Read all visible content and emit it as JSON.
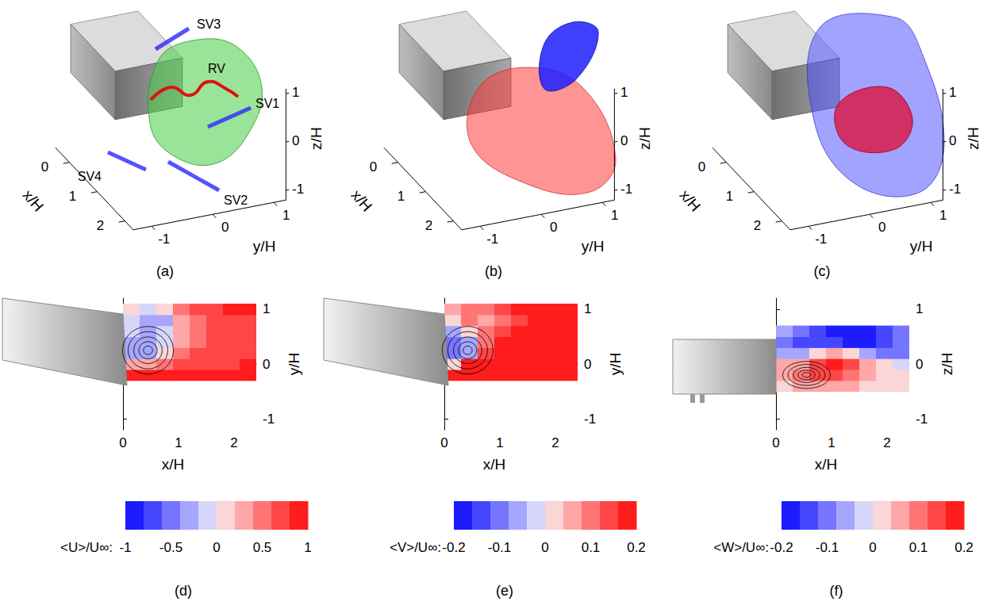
{
  "chart_data": [
    {
      "panel": "(a)",
      "type": "surface3d",
      "xlabel": "x/H",
      "ylabel": "y/H",
      "zlabel": "z/H",
      "xlim": [
        -0.5,
        2.3
      ],
      "ylim": [
        -1.3,
        1.2
      ],
      "zlim": [
        -1.2,
        1.1
      ],
      "xticks": [
        0,
        1,
        2
      ],
      "yticks": [
        -1,
        0,
        1
      ],
      "zticks": [
        -1,
        0,
        1
      ],
      "annotations": [
        "SV3",
        "RV",
        "SV1",
        "SV4",
        "SV2"
      ]
    },
    {
      "panel": "(b)",
      "type": "surface3d",
      "xlabel": "x/H",
      "ylabel": "y/H",
      "zlabel": "z/H",
      "xlim": [
        -0.5,
        2.3
      ],
      "ylim": [
        -1.3,
        1.2
      ],
      "zlim": [
        -1.2,
        1.1
      ],
      "xticks": [
        0,
        1,
        2
      ],
      "yticks": [
        -1,
        0,
        1
      ],
      "zticks": [
        -1,
        0,
        1
      ]
    },
    {
      "panel": "(c)",
      "type": "surface3d",
      "xlabel": "x/H",
      "ylabel": "y/H",
      "zlabel": "z/H",
      "xlim": [
        -0.5,
        2.3
      ],
      "ylim": [
        -1.3,
        1.2
      ],
      "zlim": [
        -1.2,
        1.1
      ],
      "xticks": [
        0,
        1,
        2
      ],
      "yticks": [
        -1,
        0,
        1
      ],
      "zticks": [
        -1,
        0,
        1
      ]
    },
    {
      "panel": "(d)",
      "type": "heatmap",
      "xlabel": "x/H",
      "ylabel": "y/H",
      "xlim": [
        -0.6,
        2.4
      ],
      "ylim": [
        -1.2,
        1.2
      ],
      "xticks": [
        0,
        1,
        2
      ],
      "yticks": [
        -1,
        0,
        1
      ],
      "x": [
        0.15,
        0.45,
        0.75,
        1.05,
        1.35,
        1.65,
        1.95,
        2.25
      ],
      "y": [
        -0.2,
        0,
        0.2,
        0.4,
        0.6,
        0.8,
        1.0
      ],
      "cells": [
        [
          0.9,
          0.9,
          0.9,
          0.8,
          0.8,
          0.8,
          0.8,
          0.8
        ],
        [
          0.3,
          0.2,
          0.4,
          0.6,
          0.7,
          0.7,
          0.7,
          0.8
        ],
        [
          -0.3,
          -0.3,
          0.0,
          0.4,
          0.6,
          0.6,
          0.7,
          0.7
        ],
        [
          -0.3,
          -0.4,
          -0.1,
          0.3,
          0.5,
          0.6,
          0.6,
          0.7
        ],
        [
          -0.2,
          -0.4,
          -0.2,
          0.3,
          0.5,
          0.6,
          0.6,
          0.7
        ],
        [
          -0.1,
          -0.3,
          -0.3,
          0.2,
          0.5,
          0.6,
          0.7,
          0.7
        ],
        [
          0.1,
          -0.1,
          0.1,
          0.4,
          0.6,
          0.7,
          0.8,
          0.8
        ]
      ],
      "colorbar": {
        "label": "<U>/U∞:",
        "range": [
          -1,
          1
        ],
        "ticks": [
          -1,
          -0.5,
          0,
          0.5,
          1
        ]
      }
    },
    {
      "panel": "(e)",
      "type": "heatmap",
      "xlabel": "x/H",
      "ylabel": "y/H",
      "xlim": [
        -0.6,
        2.4
      ],
      "ylim": [
        -1.2,
        1.2
      ],
      "xticks": [
        0,
        1,
        2
      ],
      "yticks": [
        -1,
        0,
        1
      ],
      "x": [
        0.15,
        0.45,
        0.75,
        1.05,
        1.35,
        1.65,
        1.95,
        2.25
      ],
      "y": [
        -0.2,
        0,
        0.2,
        0.4,
        0.6,
        0.8,
        1.0
      ],
      "cells": [
        [
          0.2,
          0.2,
          0.2,
          0.2,
          0.2,
          0.2,
          0.2,
          0.2
        ],
        [
          0.0,
          0.2,
          0.2,
          0.2,
          0.2,
          0.2,
          0.2,
          0.2
        ],
        [
          -0.1,
          -0.05,
          0.15,
          0.2,
          0.2,
          0.2,
          0.2,
          0.2
        ],
        [
          -0.1,
          -0.05,
          0.1,
          0.2,
          0.2,
          0.2,
          0.2,
          0.2
        ],
        [
          -0.05,
          0.0,
          0.1,
          0.15,
          0.2,
          0.2,
          0.2,
          0.2
        ],
        [
          0.0,
          0.1,
          0.05,
          0.1,
          0.15,
          0.2,
          0.2,
          0.2
        ],
        [
          0.05,
          0.1,
          0.1,
          0.15,
          0.2,
          0.2,
          0.2,
          0.2
        ]
      ],
      "colorbar": {
        "label": "<V>/U∞:",
        "range": [
          -0.2,
          0.2
        ],
        "ticks": [
          -0.2,
          -0.1,
          0,
          0.1,
          0.2
        ]
      }
    },
    {
      "panel": "(f)",
      "type": "heatmap",
      "xlabel": "x/H",
      "ylabel": "z/H",
      "xlim": [
        -0.6,
        2.4
      ],
      "ylim": [
        -1.2,
        1.2
      ],
      "xticks": [
        0,
        1,
        2
      ],
      "yticks": [
        -1,
        0,
        1
      ],
      "x": [
        0.15,
        0.45,
        0.75,
        1.05,
        1.35,
        1.65,
        1.95,
        2.25
      ],
      "y": [
        -0.4,
        -0.2,
        0,
        0.2,
        0.4,
        0.6
      ],
      "cells": [
        [
          0.0,
          0.05,
          0.05,
          0.05,
          0.05,
          0.02,
          0.0,
          0.0
        ],
        [
          0.05,
          0.1,
          0.15,
          0.15,
          0.1,
          0.05,
          0.02,
          0.0
        ],
        [
          0.05,
          0.05,
          0.15,
          0.2,
          0.15,
          0.05,
          0.0,
          -0.02
        ],
        [
          -0.05,
          -0.05,
          0.0,
          0.05,
          0.0,
          -0.05,
          -0.1,
          -0.1
        ],
        [
          -0.1,
          -0.15,
          -0.15,
          -0.15,
          -0.2,
          -0.2,
          -0.15,
          -0.1
        ],
        [
          -0.05,
          -0.1,
          -0.15,
          -0.2,
          -0.2,
          -0.2,
          -0.15,
          -0.1
        ]
      ],
      "colorbar": {
        "label": "<W>/U∞:",
        "range": [
          -0.2,
          0.2
        ],
        "ticks": [
          -0.2,
          -0.1,
          0,
          0.1,
          0.2
        ]
      }
    }
  ]
}
